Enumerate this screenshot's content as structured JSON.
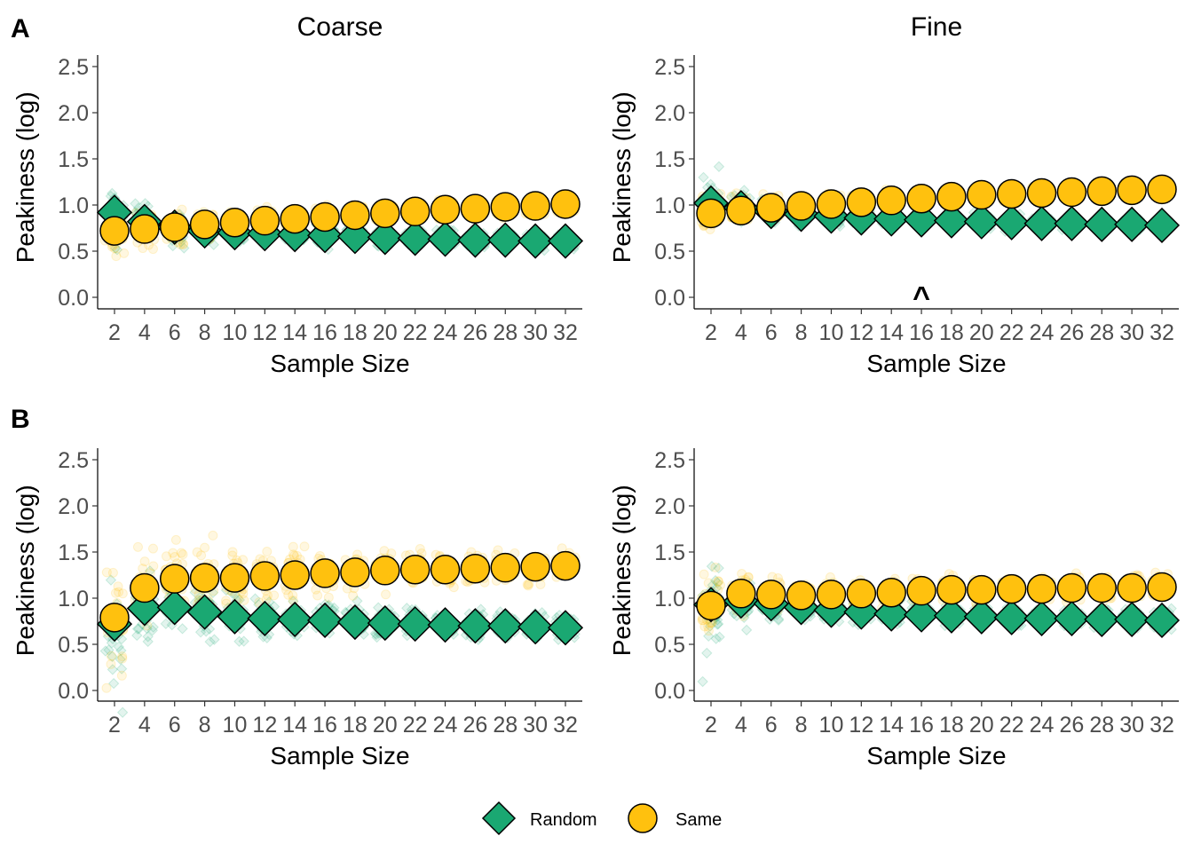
{
  "figure": {
    "panel_labels": [
      "A",
      "B"
    ],
    "column_titles": [
      "Coarse",
      "Fine"
    ],
    "legend": [
      {
        "label": "Random",
        "shape": "diamond",
        "color": "#1aa872"
      },
      {
        "label": "Same",
        "shape": "circle",
        "color": "#ffc10e"
      }
    ]
  },
  "chart_data": [
    {
      "type": "scatter",
      "panel": "A",
      "column": "Coarse",
      "xlabel": "Sample Size",
      "ylabel": "Peakiness (log)",
      "categories": [
        "2",
        "4",
        "6",
        "8",
        "10",
        "12",
        "14",
        "16",
        "18",
        "20",
        "22",
        "24",
        "26",
        "28",
        "30",
        "32"
      ],
      "ylim": [
        0,
        2.6
      ],
      "yticks": [
        0.0,
        0.5,
        1.0,
        1.5,
        2.0,
        2.5
      ],
      "ytick_labels": [
        "0.0",
        "0.5",
        "1.0",
        "1.5",
        "2.0",
        "2.5"
      ],
      "grid": false,
      "series": [
        {
          "name": "Random",
          "values": [
            0.92,
            0.82,
            0.76,
            0.72,
            0.7,
            0.69,
            0.68,
            0.67,
            0.66,
            0.65,
            0.64,
            0.63,
            0.62,
            0.62,
            0.61,
            0.61
          ],
          "spread": [
            0.27,
            0.17,
            0.15,
            0.13,
            0.12,
            0.11,
            0.11,
            0.1,
            0.1,
            0.09,
            0.09,
            0.09,
            0.08,
            0.08,
            0.08,
            0.08
          ]
        },
        {
          "name": "Same",
          "values": [
            0.72,
            0.74,
            0.76,
            0.79,
            0.81,
            0.83,
            0.85,
            0.87,
            0.89,
            0.91,
            0.93,
            0.95,
            0.96,
            0.98,
            0.99,
            1.01
          ],
          "spread": [
            0.24,
            0.17,
            0.15,
            0.13,
            0.12,
            0.11,
            0.11,
            0.1,
            0.1,
            0.09,
            0.09,
            0.09,
            0.08,
            0.08,
            0.08,
            0.08
          ]
        }
      ],
      "annotations": []
    },
    {
      "type": "scatter",
      "panel": "A",
      "column": "Fine",
      "xlabel": "Sample Size",
      "ylabel": "Peakiness (log)",
      "categories": [
        "2",
        "4",
        "6",
        "8",
        "10",
        "12",
        "14",
        "16",
        "18",
        "20",
        "22",
        "24",
        "26",
        "28",
        "30",
        "32"
      ],
      "ylim": [
        0,
        2.6
      ],
      "yticks": [
        0.0,
        0.5,
        1.0,
        1.5,
        2.0,
        2.5
      ],
      "ytick_labels": [
        "0.0",
        "0.5",
        "1.0",
        "1.5",
        "2.0",
        "2.5"
      ],
      "grid": false,
      "series": [
        {
          "name": "Random",
          "values": [
            1.02,
            0.97,
            0.93,
            0.9,
            0.88,
            0.86,
            0.85,
            0.84,
            0.83,
            0.82,
            0.81,
            0.8,
            0.8,
            0.79,
            0.79,
            0.78
          ],
          "spread": [
            0.22,
            0.13,
            0.11,
            0.09,
            0.08,
            0.08,
            0.07,
            0.07,
            0.07,
            0.06,
            0.06,
            0.06,
            0.06,
            0.06,
            0.05,
            0.05
          ]
        },
        {
          "name": "Same",
          "values": [
            0.91,
            0.94,
            0.97,
            0.99,
            1.01,
            1.03,
            1.05,
            1.07,
            1.09,
            1.11,
            1.12,
            1.13,
            1.14,
            1.15,
            1.16,
            1.17
          ],
          "spread": [
            0.2,
            0.13,
            0.11,
            0.09,
            0.08,
            0.08,
            0.07,
            0.07,
            0.07,
            0.06,
            0.06,
            0.06,
            0.06,
            0.06,
            0.05,
            0.05
          ]
        }
      ],
      "annotations": [
        {
          "text": "^",
          "x": "16",
          "y": 0.12
        }
      ]
    },
    {
      "type": "scatter",
      "panel": "B",
      "column": "Coarse",
      "xlabel": "Sample Size",
      "ylabel": "Peakiness (log)",
      "categories": [
        "2",
        "4",
        "6",
        "8",
        "10",
        "12",
        "14",
        "16",
        "18",
        "20",
        "22",
        "24",
        "26",
        "28",
        "30",
        "32"
      ],
      "ylim": [
        0,
        2.6
      ],
      "yticks": [
        0.0,
        0.5,
        1.0,
        1.5,
        2.0,
        2.5
      ],
      "ytick_labels": [
        "0.0",
        "0.5",
        "1.0",
        "1.5",
        "2.0",
        "2.5"
      ],
      "grid": false,
      "series": [
        {
          "name": "Random",
          "values": [
            0.72,
            0.89,
            0.9,
            0.85,
            0.8,
            0.78,
            0.77,
            0.76,
            0.74,
            0.73,
            0.72,
            0.71,
            0.7,
            0.7,
            0.69,
            0.68
          ],
          "spread": [
            0.5,
            0.33,
            0.27,
            0.23,
            0.2,
            0.18,
            0.17,
            0.16,
            0.15,
            0.14,
            0.14,
            0.13,
            0.13,
            0.12,
            0.12,
            0.12
          ]
        },
        {
          "name": "Same",
          "values": [
            0.79,
            1.11,
            1.21,
            1.22,
            1.22,
            1.24,
            1.25,
            1.27,
            1.28,
            1.3,
            1.31,
            1.31,
            1.32,
            1.33,
            1.34,
            1.35
          ],
          "spread": [
            0.48,
            0.38,
            0.33,
            0.3,
            0.27,
            0.25,
            0.23,
            0.21,
            0.2,
            0.19,
            0.18,
            0.17,
            0.17,
            0.16,
            0.16,
            0.15
          ]
        }
      ],
      "annotations": []
    },
    {
      "type": "scatter",
      "panel": "B",
      "column": "Fine",
      "xlabel": "Sample Size",
      "ylabel": "Peakiness (log)",
      "categories": [
        "2",
        "4",
        "6",
        "8",
        "10",
        "12",
        "14",
        "16",
        "18",
        "20",
        "22",
        "24",
        "26",
        "28",
        "30",
        "32"
      ],
      "ylim": [
        0,
        2.6
      ],
      "yticks": [
        0.0,
        0.5,
        1.0,
        1.5,
        2.0,
        2.5
      ],
      "ytick_labels": [
        "0.0",
        "0.5",
        "1.0",
        "1.5",
        "2.0",
        "2.5"
      ],
      "grid": false,
      "series": [
        {
          "name": "Random",
          "values": [
            0.93,
            0.97,
            0.94,
            0.9,
            0.87,
            0.85,
            0.83,
            0.82,
            0.81,
            0.8,
            0.79,
            0.78,
            0.78,
            0.77,
            0.77,
            0.76
          ],
          "spread": [
            0.42,
            0.2,
            0.16,
            0.14,
            0.13,
            0.12,
            0.12,
            0.11,
            0.11,
            0.1,
            0.1,
            0.1,
            0.1,
            0.1,
            0.1,
            0.1
          ]
        },
        {
          "name": "Same",
          "values": [
            0.92,
            1.05,
            1.04,
            1.03,
            1.04,
            1.05,
            1.06,
            1.08,
            1.09,
            1.09,
            1.1,
            1.1,
            1.11,
            1.11,
            1.11,
            1.12
          ],
          "spread": [
            0.3,
            0.2,
            0.17,
            0.16,
            0.15,
            0.14,
            0.14,
            0.13,
            0.13,
            0.12,
            0.12,
            0.12,
            0.12,
            0.12,
            0.12,
            0.12
          ]
        }
      ],
      "annotations": []
    }
  ]
}
